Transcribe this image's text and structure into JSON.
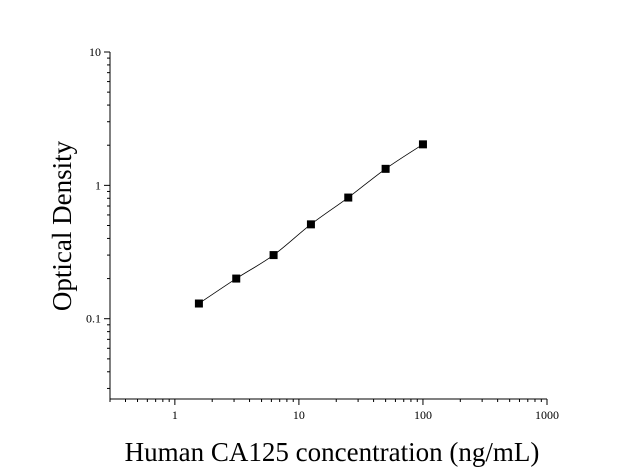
{
  "chart_data": {
    "type": "scatter",
    "title": "",
    "xlabel": "Human CA125 concentration (ng/mL)",
    "ylabel": "Optical Density",
    "xscale": "log",
    "yscale": "log",
    "xlim": [
      0.3,
      1000
    ],
    "ylim": [
      0.025,
      10
    ],
    "x_ticks": [
      {
        "value": 1,
        "label": "1"
      },
      {
        "value": 10,
        "label": "10"
      },
      {
        "value": 100,
        "label": "100"
      },
      {
        "value": 1000,
        "label": "1000"
      }
    ],
    "y_ticks": [
      {
        "value": 0.1,
        "label": "0.1"
      },
      {
        "value": 1,
        "label": "1"
      },
      {
        "value": 10,
        "label": "10"
      }
    ],
    "grid": false,
    "fit_curve": true,
    "series": [
      {
        "x": [
          1.5625,
          3.125,
          6.25,
          12.5,
          25,
          50,
          100
        ],
        "y": [
          0.13,
          0.2,
          0.3,
          0.51,
          0.81,
          1.33,
          2.03
        ]
      }
    ],
    "colors": {
      "axis": "#000000",
      "marker": "#000000",
      "curve": "#000000"
    }
  }
}
